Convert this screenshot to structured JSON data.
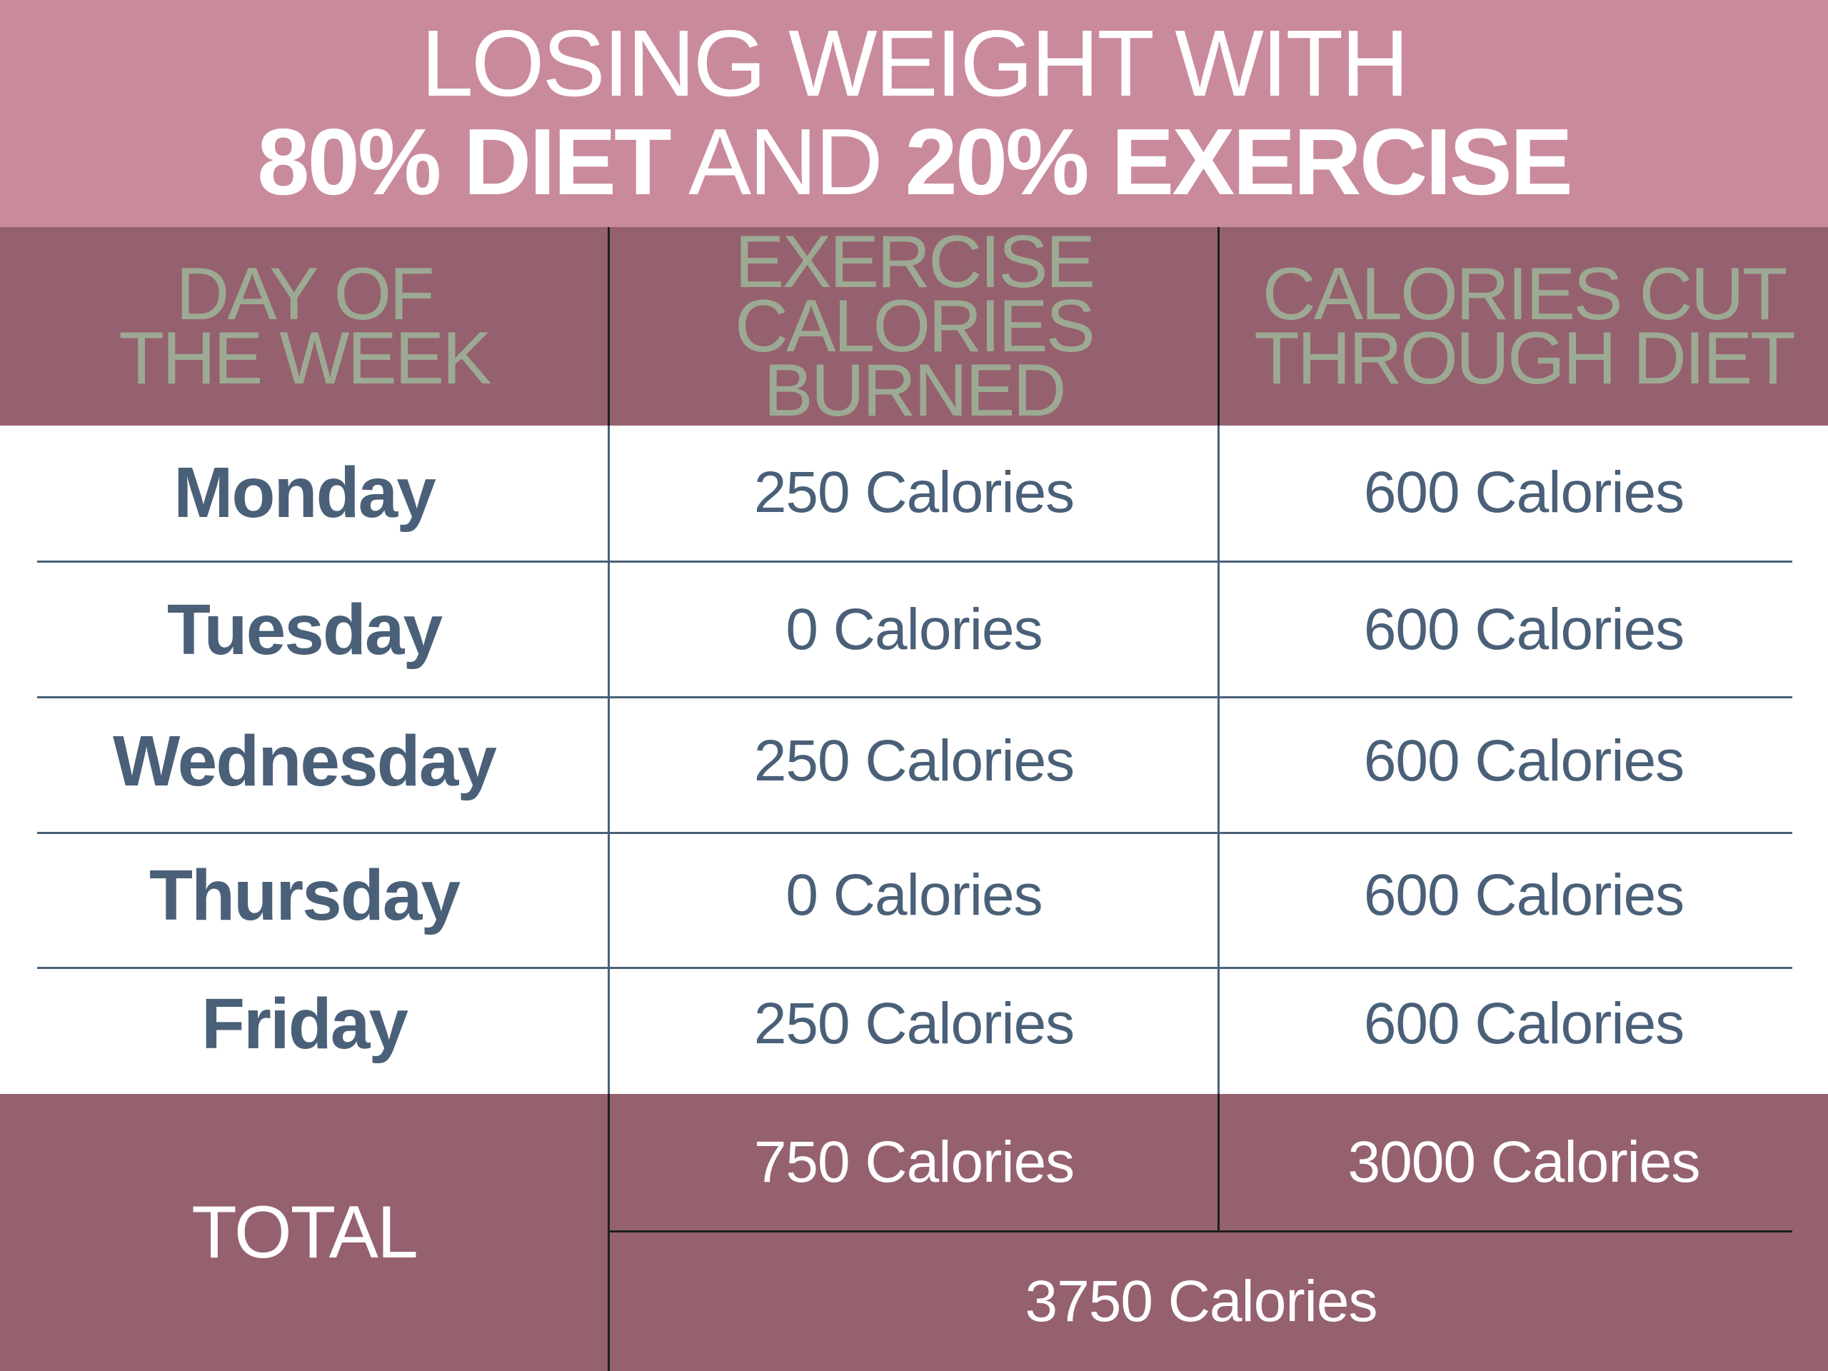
{
  "title": {
    "line1": "LOSING WEIGHT WITH",
    "line2_part1": "80% DIET",
    "line2_part2": " AND ",
    "line2_part3": "20% EXERCISE"
  },
  "headers": {
    "day": "DAY OF\nTHE WEEK",
    "exercise": "EXERCISE\nCALORIES\nBURNED",
    "diet": "CALORIES CUT\nTHROUGH DIET"
  },
  "rows": [
    {
      "day": "Monday",
      "exercise": "250 Calories",
      "diet": "600 Calories"
    },
    {
      "day": "Tuesday",
      "exercise": "0 Calories",
      "diet": "600 Calories"
    },
    {
      "day": "Wednesday",
      "exercise": "250 Calories",
      "diet": "600 Calories"
    },
    {
      "day": "Thursday",
      "exercise": "0 Calories",
      "diet": "600 Calories"
    },
    {
      "day": "Friday",
      "exercise": "250 Calories",
      "diet": "600 Calories"
    }
  ],
  "total": {
    "label": "TOTAL",
    "exercise": "750 Calories",
    "diet": "3000 Calories",
    "grand": "3750 Calories"
  },
  "colors": {
    "banner": "#c98b9b",
    "header": "#95616f",
    "header_text": "#9daa93",
    "body_text": "#4a6078"
  }
}
